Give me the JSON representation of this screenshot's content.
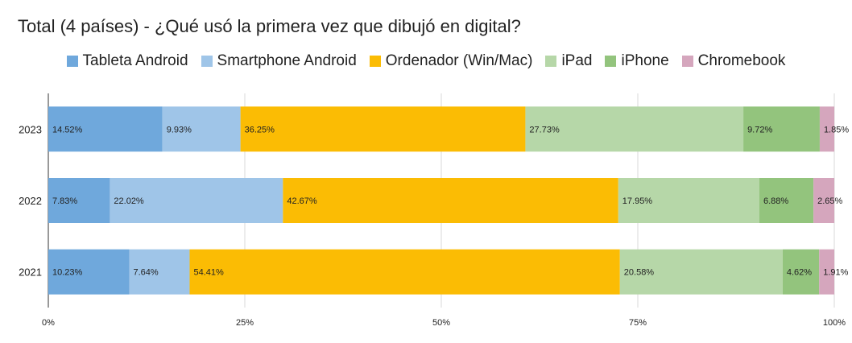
{
  "chart_data": {
    "type": "bar",
    "orientation": "horizontal",
    "stacked": "percent",
    "title": "Total (4 países) - ¿Qué usó la primera vez que dibujó en digital?",
    "categories": [
      "2023",
      "2022",
      "2021"
    ],
    "series": [
      {
        "name": "Tableta Android",
        "color": "#6fa8dc",
        "values": [
          14.52,
          7.83,
          10.23
        ],
        "labels": [
          "14.52%",
          "7.83%",
          "10.23%"
        ]
      },
      {
        "name": "Smartphone Android",
        "color": "#9fc5e8",
        "values": [
          9.93,
          22.02,
          7.64
        ],
        "labels": [
          "9.93%",
          "22.02%",
          "7.64%"
        ]
      },
      {
        "name": "Ordenador (Win/Mac)",
        "color": "#fbbc04",
        "values": [
          36.25,
          42.67,
          54.41
        ],
        "labels": [
          "36.25%",
          "42.67%",
          "54.41%"
        ]
      },
      {
        "name": "iPad",
        "color": "#b6d7a8",
        "values": [
          27.73,
          17.95,
          20.58
        ],
        "labels": [
          "27.73%",
          "17.95%",
          "20.58%"
        ]
      },
      {
        "name": "iPhone",
        "color": "#93c47d",
        "values": [
          9.72,
          6.88,
          4.62
        ],
        "labels": [
          "9.72%",
          "6.88%",
          "4.62%"
        ]
      },
      {
        "name": "Chromebook",
        "color": "#d5a6bd",
        "values": [
          1.85,
          2.65,
          1.91
        ],
        "labels": [
          "1.85%",
          "2.65%",
          "1.91%"
        ]
      }
    ],
    "x_ticks": [
      "0%",
      "25%",
      "50%",
      "75%",
      "100%"
    ],
    "xlim": [
      0,
      100
    ],
    "grid": true,
    "legend": "top"
  }
}
